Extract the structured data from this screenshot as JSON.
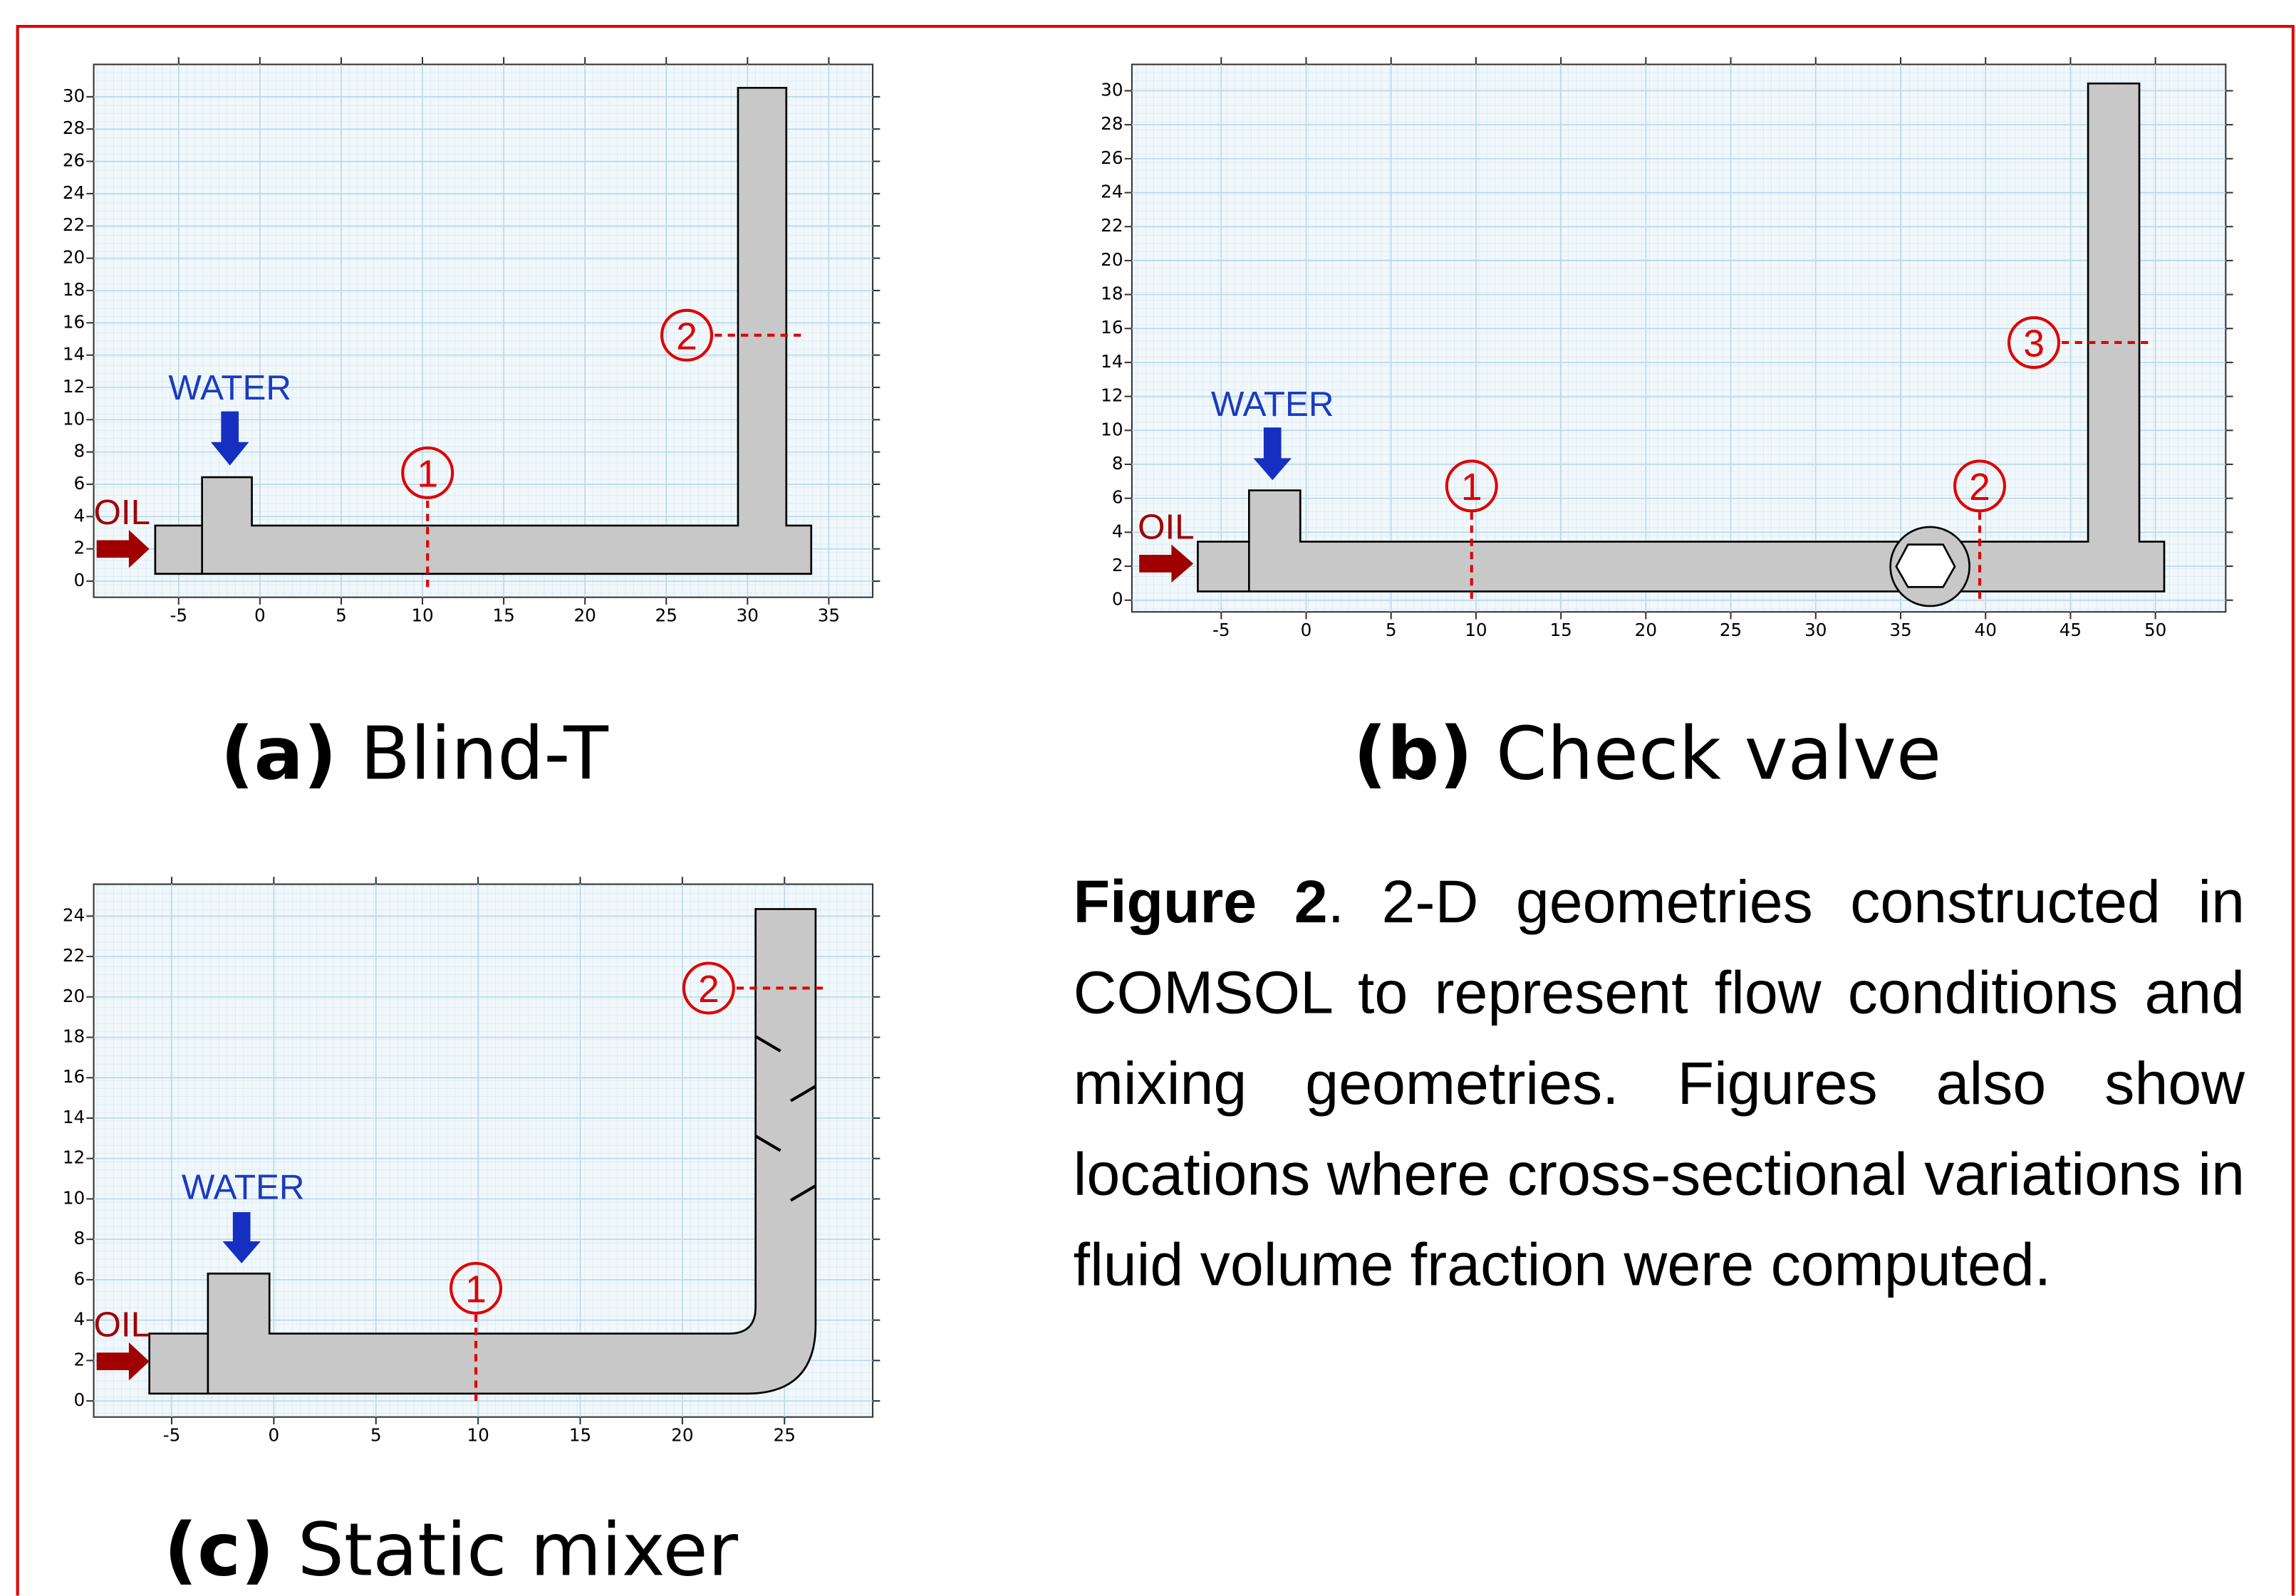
{
  "panels": [
    {
      "caption_label": "(a)",
      "caption_text": "Blind-T",
      "water_label": "WATER",
      "oil_label": "OIL",
      "probes": [
        "1",
        "2"
      ],
      "xticks": [
        -5,
        0,
        5,
        10,
        15,
        20,
        25,
        30,
        35
      ],
      "yticks": [
        0,
        2,
        4,
        6,
        8,
        10,
        12,
        14,
        16,
        18,
        20,
        22,
        24,
        26,
        28,
        30
      ]
    },
    {
      "caption_label": "(b)",
      "caption_text": "Check valve",
      "water_label": "WATER",
      "oil_label": "OIL",
      "probes": [
        "1",
        "2",
        "3"
      ],
      "xticks": [
        -5,
        0,
        5,
        10,
        15,
        20,
        25,
        30,
        35,
        40,
        45,
        50
      ],
      "yticks": [
        0,
        2,
        4,
        6,
        8,
        10,
        12,
        14,
        16,
        18,
        20,
        22,
        24,
        26,
        28,
        30
      ]
    },
    {
      "caption_label": "(c)",
      "caption_text": "Static mixer",
      "water_label": "WATER",
      "oil_label": "OIL",
      "probes": [
        "1",
        "2"
      ],
      "xticks": [
        -5,
        0,
        5,
        10,
        15,
        20,
        25
      ],
      "yticks": [
        0,
        2,
        4,
        6,
        8,
        10,
        12,
        14,
        16,
        18,
        20,
        22,
        24
      ]
    }
  ],
  "figure_caption": {
    "label": "Figure 2",
    "text": ". 2-D geometries constructed in COMSOL to represent flow conditions and mixing geometries. Figures also show locations where cross-sectional variations in fluid volume fraction were computed."
  }
}
